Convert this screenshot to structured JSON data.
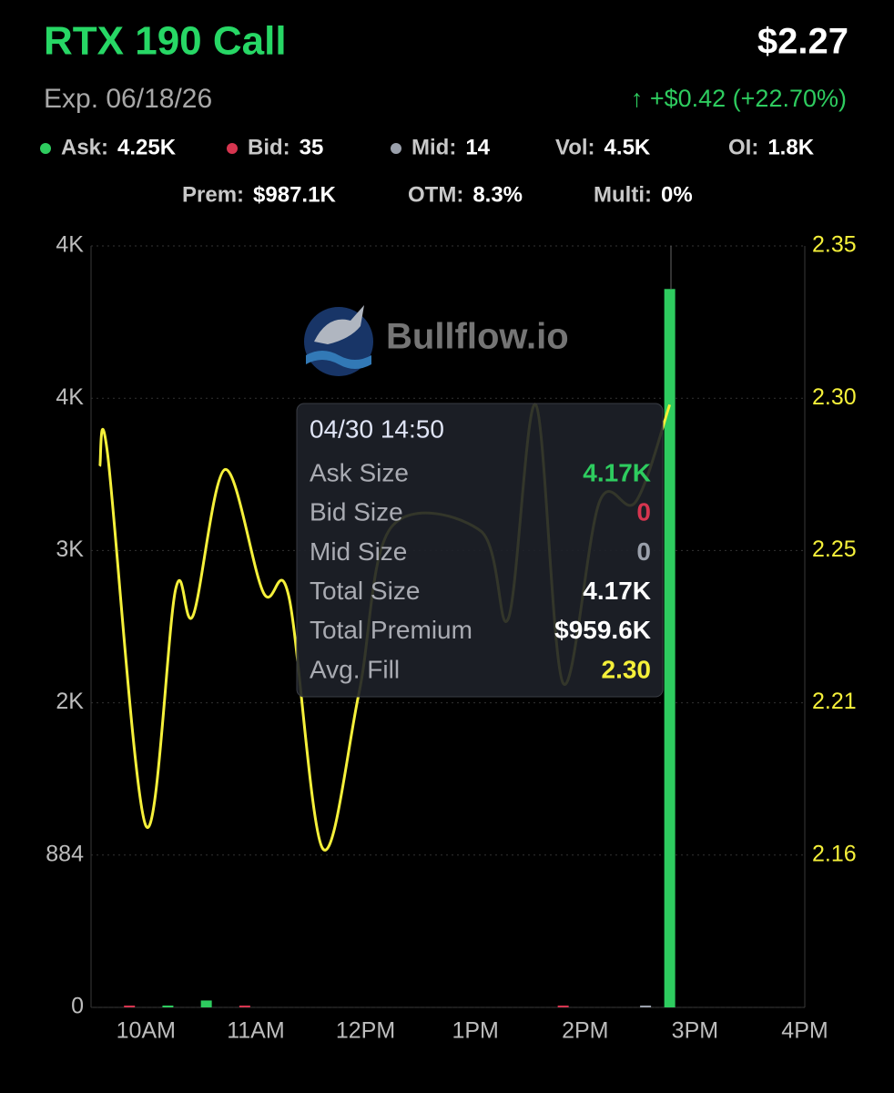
{
  "header": {
    "title": "RTX 190 Call",
    "price": "$2.27",
    "expiry": "Exp. 06/18/26",
    "change": "↑ +$0.42 (+22.70%)",
    "stats": [
      {
        "label": "Ask:",
        "value": "4.25K",
        "color": "#2ecc5f"
      },
      {
        "label": "Bid:",
        "value": "35",
        "color": "#d6354f"
      },
      {
        "label": "Mid:",
        "value": "14",
        "color": "#9aa0ab"
      },
      {
        "label": "Vol:",
        "value": "4.5K"
      },
      {
        "label": "OI:",
        "value": "1.8K"
      },
      {
        "label": "Prem:",
        "value": "$987.1K"
      },
      {
        "label": "OTM:",
        "value": "8.3%"
      },
      {
        "label": "Multi:",
        "value": "0%"
      }
    ]
  },
  "watermark": "Bullflow.io",
  "chart_data": {
    "type": "bar-line",
    "xlim": [
      9.5,
      16
    ],
    "xticks": [
      {
        "value": 10,
        "label": "10AM"
      },
      {
        "value": 11,
        "label": "11AM"
      },
      {
        "value": 12,
        "label": "12PM"
      },
      {
        "value": 13,
        "label": "1PM"
      },
      {
        "value": 14,
        "label": "2PM"
      },
      {
        "value": 15,
        "label": "3PM"
      },
      {
        "value": 16,
        "label": "4PM"
      }
    ],
    "ylim": [
      0,
      4420
    ],
    "yticks": [
      0,
      884,
      {
        "value": 1768,
        "label": "2K"
      },
      {
        "value": 2652,
        "label": "3K"
      },
      {
        "value": 3536,
        "label": "4K"
      },
      {
        "value": 4420,
        "label": "4K"
      }
    ],
    "y2lim": [
      2.113,
      2.348
    ],
    "y2ticks": [
      2.16,
      {
        "value": 2.207,
        "label": "2.21"
      },
      {
        "value": 2.254,
        "label": "2.25"
      },
      {
        "value": 2.301,
        "label": "2.30"
      },
      {
        "value": 2.348,
        "label": "2.35"
      }
    ],
    "grid": true,
    "series": [
      {
        "type": "line",
        "axis": "y2",
        "color": "#f5f03a",
        "x": [
          9.58,
          9.65,
          10.0,
          10.27,
          10.43,
          10.72,
          11.07,
          11.3,
          11.61,
          11.94,
          12.23,
          13.05,
          13.3,
          13.55,
          13.8,
          14.13,
          14.46,
          14.77
        ],
        "values": [
          2.28,
          2.284,
          2.169,
          2.242,
          2.234,
          2.279,
          2.241,
          2.24,
          2.162,
          2.21,
          2.261,
          2.26,
          2.233,
          2.299,
          2.213,
          2.269,
          2.269,
          2.299
        ]
      },
      {
        "type": "bar",
        "color": "#2ecc5f",
        "x": [
          10.2,
          10.55,
          14.77
        ],
        "values": [
          8,
          40,
          4170
        ]
      },
      {
        "type": "bar",
        "color": "#d6354f",
        "x": [
          9.85,
          10.9,
          13.8
        ],
        "values": [
          5,
          10,
          5
        ]
      },
      {
        "type": "bar",
        "color": "#9aa0ab",
        "x": [
          14.55
        ],
        "values": [
          5
        ]
      }
    ]
  },
  "tooltip": {
    "title": "04/30 14:50",
    "rows": [
      {
        "label": "Ask Size",
        "value": "4.17K",
        "color": "#2ecc5f"
      },
      {
        "label": "Bid Size",
        "value": "0",
        "color": "#d6354f"
      },
      {
        "label": "Mid Size",
        "value": "0",
        "color": "#9aa0ab"
      },
      {
        "label": "Total Size",
        "value": "4.17K",
        "color": "#ffffff"
      },
      {
        "label": "Total Premium",
        "value": "$959.6K",
        "color": "#ffffff"
      },
      {
        "label": "Avg. Fill",
        "value": "2.30",
        "color": "#f5f03a"
      }
    ]
  }
}
